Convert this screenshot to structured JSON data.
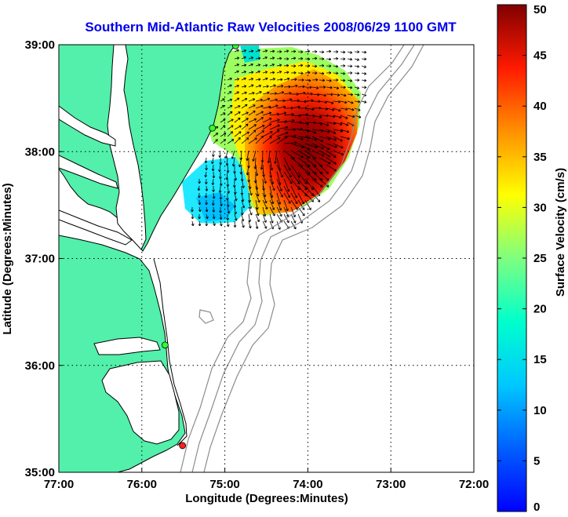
{
  "title": "Southern Mid-Atlantic Raw Velocities 2008/06/29 1100 GMT",
  "map": {
    "xlabel": "Longitude (Degrees:Minutes)",
    "ylabel": "Latitude (Degrees:Minutes)",
    "lon_range": [
      -77.0,
      -72.0
    ],
    "lat_range": [
      35.0,
      39.0
    ],
    "lon_ticks": [
      {
        "value": -77.0,
        "label": "77:00"
      },
      {
        "value": -76.0,
        "label": "76:00"
      },
      {
        "value": -75.0,
        "label": "75:00"
      },
      {
        "value": -74.0,
        "label": "74:00"
      },
      {
        "value": -73.0,
        "label": "73:00"
      },
      {
        "value": -72.0,
        "label": "72:00"
      }
    ],
    "lat_ticks": [
      {
        "value": 39.0,
        "label": "39:00"
      },
      {
        "value": 38.0,
        "label": "38:00"
      },
      {
        "value": 37.0,
        "label": "37:00"
      },
      {
        "value": 36.0,
        "label": "36:00"
      },
      {
        "value": 35.0,
        "label": "35:00"
      }
    ],
    "grid": "dotted",
    "land_color": "#52f0aa",
    "water_color": "#ffffff",
    "coast_color": "#000000",
    "bathymetry_color": "#8c8c8c",
    "stations": [
      {
        "lon": -74.87,
        "lat": 38.99,
        "status": "green"
      },
      {
        "lon": -75.15,
        "lat": 38.22,
        "status": "green"
      },
      {
        "lon": -75.72,
        "lat": 36.19,
        "status": "green"
      },
      {
        "lon": -75.51,
        "lat": 35.25,
        "status": "red"
      }
    ]
  },
  "colorbar": {
    "label": "Surface Velocity (cm/s)",
    "min": 0,
    "max": 50,
    "ticks": [
      "0",
      "5",
      "10",
      "15",
      "20",
      "25",
      "30",
      "35",
      "40",
      "45",
      "50"
    ],
    "colormap": "jet"
  }
}
